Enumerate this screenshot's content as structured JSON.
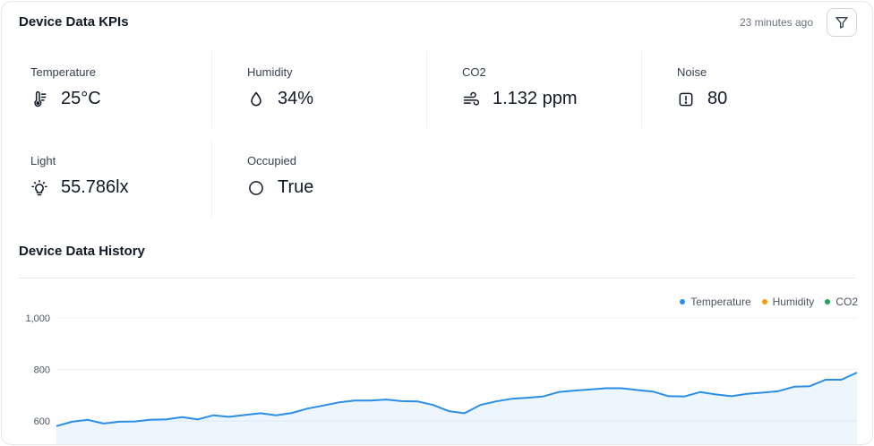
{
  "header": {
    "title": "Device Data KPIs",
    "updated": "23 minutes ago"
  },
  "kpis": [
    {
      "label": "Temperature",
      "value": "25°C",
      "icon": "thermometer-icon"
    },
    {
      "label": "Humidity",
      "value": "34%",
      "icon": "droplet-icon"
    },
    {
      "label": "CO2",
      "value": "1.132 ppm",
      "icon": "wind-icon"
    },
    {
      "label": "Noise",
      "value": "80",
      "icon": "alert-square-icon"
    },
    {
      "label": "Light",
      "value": "55.786lx",
      "icon": "lightbulb-icon"
    },
    {
      "label": "Occupied",
      "value": "True",
      "icon": "circle-icon"
    }
  ],
  "history": {
    "title": "Device Data History"
  },
  "colors": {
    "temperature": "#2b8ee6",
    "humidity": "#f59e0b",
    "co2": "#22a45a"
  },
  "chart_data": {
    "type": "area",
    "series": [
      {
        "name": "Temperature",
        "values": [
          580,
          597,
          604,
          590,
          597,
          598,
          605,
          606,
          615,
          606,
          622,
          616,
          623,
          630,
          622,
          631,
          648,
          660,
          672,
          679,
          679,
          683,
          677,
          676,
          662,
          638,
          630,
          662,
          676,
          686,
          690,
          695,
          712,
          718,
          722,
          727,
          727,
          720,
          714,
          696,
          695,
          712,
          703,
          696,
          705,
          710,
          716,
          733,
          735,
          760,
          760,
          788
        ]
      },
      {
        "name": "Humidity",
        "values": []
      },
      {
        "name": "CO2",
        "values": []
      }
    ],
    "y_ticks": [
      "1,000",
      "800",
      "600"
    ],
    "ylim": [
      540,
      1020
    ],
    "grid": true,
    "legend": "top-right"
  }
}
